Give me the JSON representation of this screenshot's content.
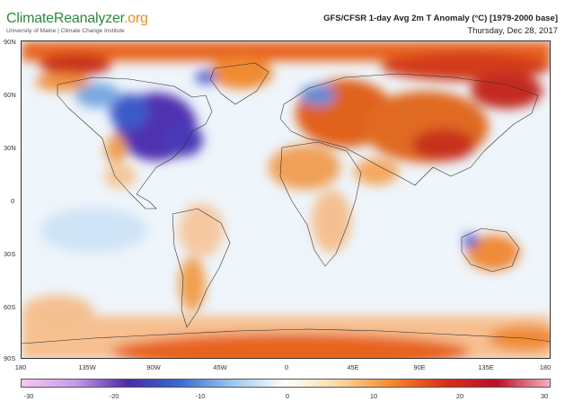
{
  "header": {
    "logo_brand": "ClimateReanalyzer",
    "logo_tld": ".org",
    "subtitle": "University of Maine | Climate Change Institute",
    "title": "GFS/CFSR 1-day Avg 2m T Anomaly (°C) [1979-2000 base]",
    "date": "Thursday, Dec 28, 2017"
  },
  "map": {
    "lat_labels": [
      "90N",
      "60N",
      "30N",
      "0",
      "30S",
      "60S",
      "90S"
    ],
    "lon_labels": [
      "180",
      "135W",
      "90W",
      "45W",
      "0",
      "45E",
      "90E",
      "135E",
      "180"
    ]
  },
  "colorbar": {
    "ticks": [
      "-30",
      "-20",
      "-10",
      "0",
      "10",
      "20",
      "30"
    ],
    "colors": [
      "#f7c8f0",
      "#c89ce8",
      "#4a2aa8",
      "#3a6ad0",
      "#9cc8ec",
      "#ffffff",
      "#fcd9a8",
      "#f58a2a",
      "#d8301a",
      "#b8102a",
      "#f7b0c0"
    ]
  }
}
